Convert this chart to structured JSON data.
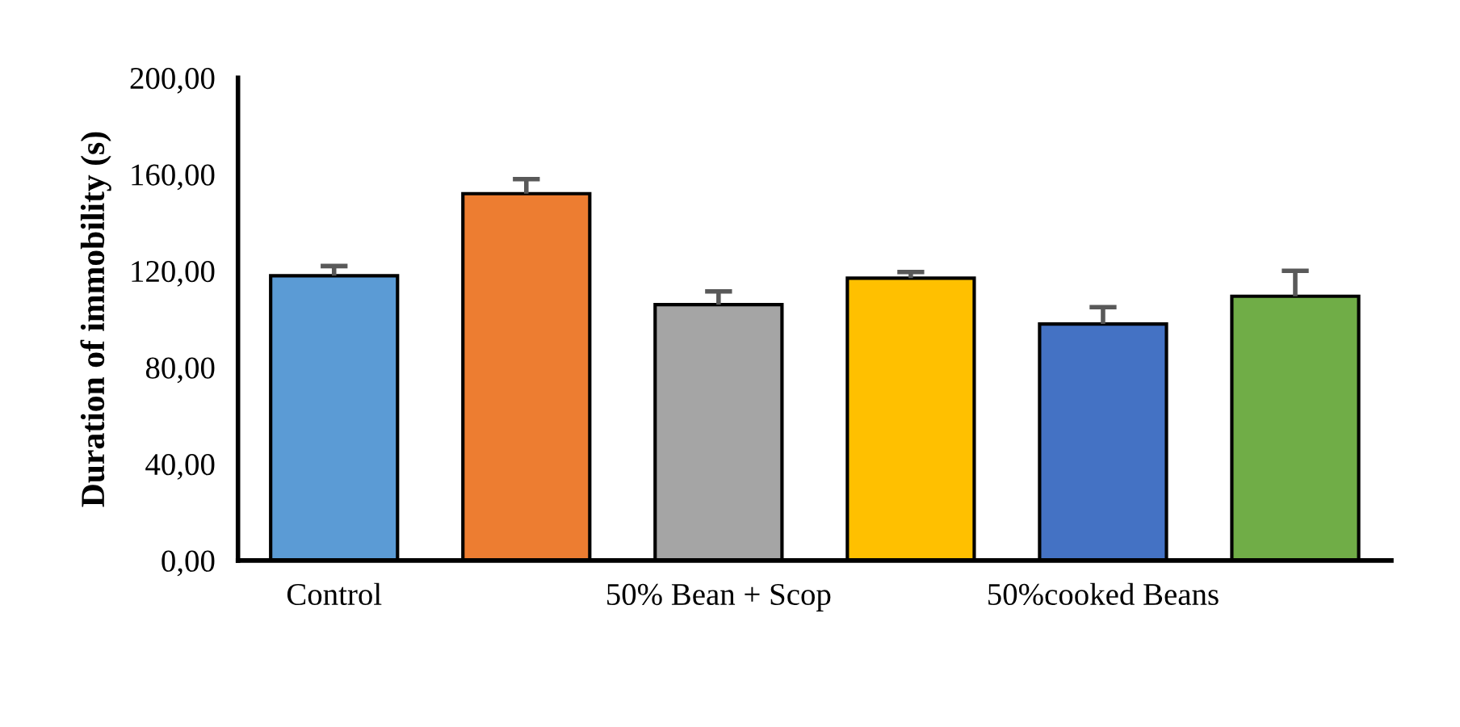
{
  "chart_data": {
    "type": "bar",
    "ylabel": "Duration of immobility (s)",
    "categories": [
      "Control",
      null,
      "50% Bean + Scop",
      null,
      "50%cooked Beans",
      null
    ],
    "values": [
      118,
      152,
      106,
      117,
      98,
      109.5
    ],
    "colors": [
      "#5b9bd5",
      "#ed7d31",
      "#a5a5a5",
      "#ffc000",
      "#4472c4",
      "#70ad47"
    ],
    "errors": [
      [
        118,
        122
      ],
      [
        152,
        158
      ],
      [
        106,
        111.5
      ],
      [
        117,
        119.5
      ],
      [
        98,
        105
      ],
      [
        109.5,
        120
      ]
    ],
    "ylim": [
      0,
      200
    ],
    "yticks": [
      {
        "value": 0,
        "label": "0,00"
      },
      {
        "value": 40,
        "label": "40,00"
      },
      {
        "value": 80,
        "label": "80,00"
      },
      {
        "value": 120,
        "label": "120,00"
      },
      {
        "value": 160,
        "label": "160,00"
      },
      {
        "value": 200,
        "label": "200,00"
      }
    ],
    "grid": false,
    "legend": false
  }
}
